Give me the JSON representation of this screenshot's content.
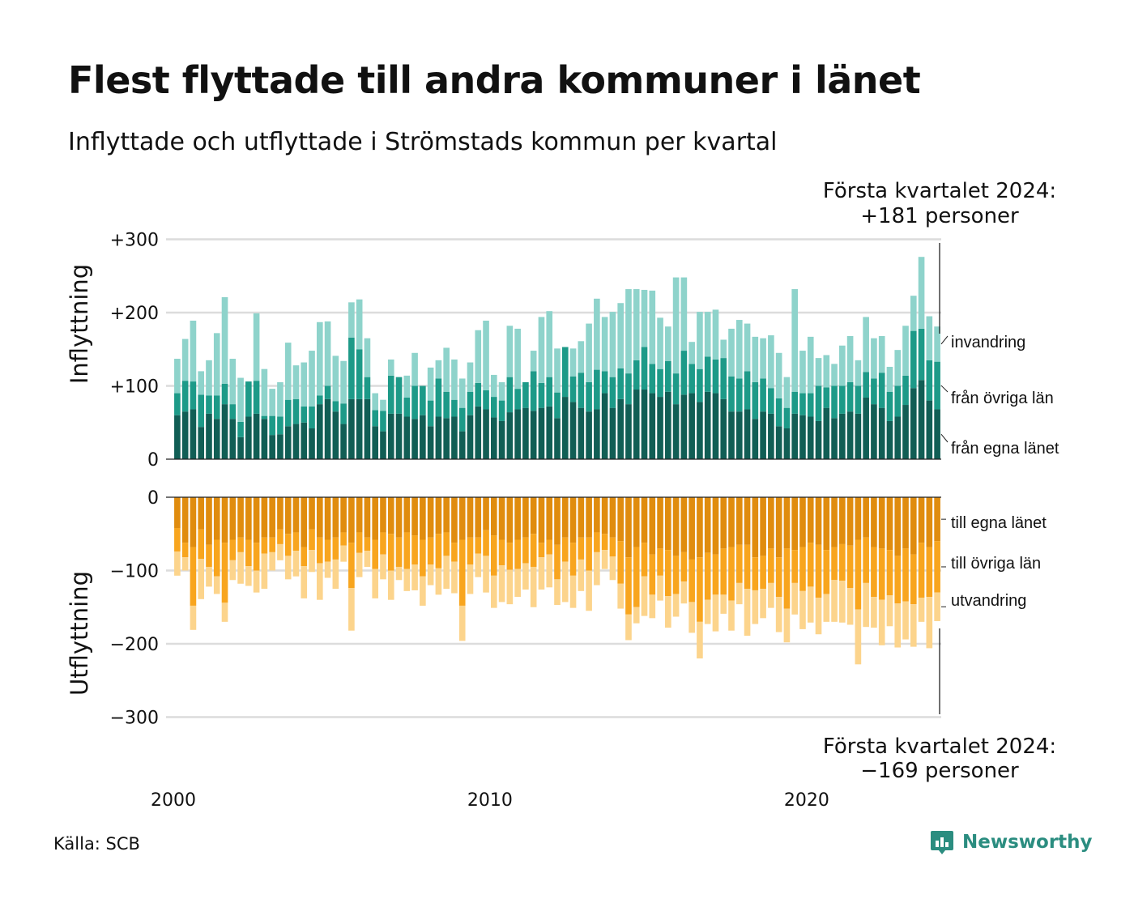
{
  "title": "Flest flyttade till andra kommuner i länet",
  "subtitle": "Inflyttade och utflyttade i Strömstads kommun per kvartal",
  "source": "Källa: SCB",
  "brand": "Newsworthy",
  "colors": {
    "in_own": "#115e55",
    "in_other": "#1d9a88",
    "in_immigration": "#8ed3cb",
    "out_own": "#e08c0e",
    "out_other": "#f8a51e",
    "out_emigration": "#fcd48c",
    "brand": "#2b8d80"
  },
  "chart_data": {
    "type": "bar",
    "stacked": true,
    "x_start": "2000 Q1",
    "x_end": "2024 Q1",
    "xticks": [
      "2000",
      "2010",
      "2020"
    ],
    "panels": [
      {
        "name": "inflyttning",
        "ylabel": "Inflyttning",
        "ylim": [
          0,
          300
        ],
        "yticks": [
          0,
          100,
          200,
          300
        ],
        "ytick_labels": [
          "0",
          "+100",
          "+200",
          "+300"
        ],
        "series": [
          {
            "name": "från egna länet",
            "values": [
              60,
              65,
              68,
              44,
              62,
              55,
              75,
              55,
              30,
              58,
              62,
              55,
              33,
              34,
              45,
              48,
              50,
              42,
              75,
              82,
              65,
              48,
              82,
              82,
              82,
              45,
              38,
              62,
              62,
              58,
              55,
              60,
              45,
              58,
              56,
              58,
              38,
              60,
              72,
              68,
              57,
              52,
              64,
              68,
              70,
              66,
              70,
              72,
              56,
              85,
              78,
              70,
              65,
              68,
              90,
              70,
              82,
              75,
              95,
              95,
              90,
              85,
              92,
              75,
              88,
              90,
              78,
              92,
              90,
              82,
              65,
              65,
              68,
              55,
              65,
              62,
              45,
              42,
              62,
              60,
              58,
              52,
              70,
              56,
              62,
              65,
              62,
              84,
              75,
              70,
              52,
              58,
              74,
              97,
              108,
              80,
              68
            ]
          },
          {
            "name": "från övriga län",
            "values": [
              30,
              42,
              38,
              44,
              25,
              32,
              28,
              20,
              21,
              48,
              45,
              4,
              26,
              24,
              36,
              34,
              22,
              30,
              12,
              18,
              14,
              28,
              84,
              68,
              30,
              22,
              28,
              52,
              50,
              26,
              45,
              40,
              35,
              52,
              36,
              23,
              32,
              32,
              32,
              26,
              28,
              28,
              48,
              28,
              35,
              54,
              34,
              40,
              35,
              68,
              35,
              48,
              40,
              54,
              30,
              42,
              42,
              42,
              40,
              58,
              40,
              38,
              42,
              42,
              60,
              40,
              45,
              48,
              46,
              56,
              48,
              45,
              52,
              50,
              45,
              35,
              38,
              28,
              30,
              30,
              32,
              48,
              28,
              44,
              38,
              40,
              38,
              35,
              35,
              48,
              40,
              42,
              40,
              78,
              70,
              55,
              65
            ]
          },
          {
            "name": "invandring",
            "values": [
              47,
              57,
              83,
              32,
              48,
              85,
              118,
              62,
              60,
              0,
              92,
              64,
              37,
              47,
              78,
              46,
              60,
              76,
              100,
              88,
              62,
              58,
              48,
              68,
              53,
              23,
              15,
              22,
              0,
              30,
              45,
              0,
              45,
              25,
              60,
              55,
              40,
              40,
              72,
              95,
              30,
              25,
              70,
              82,
              0,
              28,
              90,
              90,
              60,
              0,
              38,
              43,
              80,
              97,
              74,
              89,
              89,
              115,
              97,
              78,
              100,
              70,
              47,
              131,
              100,
              30,
              78,
              61,
              68,
              25,
              65,
              80,
              65,
              62,
              55,
              72,
              62,
              42,
              140,
              58,
              77,
              38,
              44,
              30,
              55,
              63,
              35,
              75,
              55,
              50,
              34,
              49,
              68,
              48,
              98,
              60,
              48
            ]
          }
        ]
      },
      {
        "name": "utflyttning",
        "ylabel": "Utflyttning",
        "ylim": [
          -300,
          0
        ],
        "yticks": [
          -300,
          -200,
          -100,
          0
        ],
        "ytick_labels": [
          "−300",
          "−200",
          "−100",
          "0"
        ],
        "series": [
          {
            "name": "till egna länet",
            "values": [
              -42,
              -62,
              -68,
              -44,
              -65,
              -58,
              -62,
              -58,
              -55,
              -58,
              -62,
              -55,
              -55,
              -44,
              -50,
              -48,
              -68,
              -44,
              -55,
              -58,
              -55,
              -48,
              -62,
              -48,
              -55,
              -58,
              -48,
              -50,
              -55,
              -48,
              -52,
              -58,
              -55,
              -50,
              -48,
              -62,
              -58,
              -55,
              -55,
              -45,
              -52,
              -58,
              -62,
              -58,
              -55,
              -50,
              -62,
              -58,
              -65,
              -55,
              -62,
              -55,
              -55,
              -48,
              -50,
              -55,
              -60,
              -82,
              -68,
              -62,
              -78,
              -70,
              -72,
              -80,
              -75,
              -85,
              -82,
              -76,
              -78,
              -70,
              -68,
              -65,
              -65,
              -82,
              -80,
              -70,
              -82,
              -70,
              -72,
              -68,
              -62,
              -65,
              -72,
              -68,
              -64,
              -66,
              -58,
              -55,
              -68,
              -70,
              -72,
              -80,
              -70,
              -78,
              -62,
              -68,
              -60
            ]
          },
          {
            "name": "till övriga län",
            "values": [
              -32,
              -20,
              -80,
              -40,
              -30,
              -50,
              -82,
              -28,
              -20,
              -36,
              -38,
              -22,
              -20,
              -20,
              -30,
              -25,
              -26,
              -28,
              -35,
              -30,
              -30,
              -18,
              -62,
              -28,
              -18,
              -40,
              -30,
              -50,
              -40,
              -50,
              -40,
              -50,
              -37,
              -47,
              -32,
              -26,
              -90,
              -37,
              -22,
              -35,
              -55,
              -35,
              -37,
              -40,
              -35,
              -45,
              -20,
              -20,
              -47,
              -33,
              -45,
              -30,
              -45,
              -27,
              -22,
              -26,
              -58,
              -78,
              -82,
              -46,
              -55,
              -37,
              -63,
              -52,
              -40,
              -58,
              -88,
              -64,
              -55,
              -63,
              -73,
              -52,
              -60,
              -45,
              -45,
              -47,
              -54,
              -82,
              -45,
              -60,
              -60,
              -72,
              -60,
              -45,
              -50,
              -58,
              -95,
              -62,
              -68,
              -70,
              -62,
              -65,
              -72,
              -68,
              -75,
              -68,
              -70
            ]
          },
          {
            "name": "utvandring",
            "values": [
              -33,
              -18,
              -33,
              -55,
              -27,
              -24,
              -26,
              -27,
              -43,
              -27,
              -30,
              -48,
              -25,
              -22,
              -32,
              -35,
              -44,
              -30,
              -50,
              -22,
              -40,
              -22,
              -58,
              -33,
              -22,
              -40,
              -34,
              -40,
              -18,
              -30,
              -35,
              -40,
              -28,
              -36,
              -45,
              -43,
              -48,
              -40,
              -32,
              -50,
              -44,
              -50,
              -47,
              -38,
              -36,
              -55,
              -44,
              -45,
              -35,
              -55,
              -44,
              -43,
              -55,
              -45,
              -26,
              -32,
              -34,
              -35,
              -22,
              -54,
              -32,
              -34,
              -43,
              -31,
              -30,
              -42,
              -50,
              -33,
              -50,
              -26,
              -41,
              -29,
              -64,
              -46,
              -40,
              -34,
              -48,
              -46,
              -43,
              -52,
              -49,
              -50,
              -38,
              -57,
              -57,
              -50,
              -75,
              -60,
              -42,
              -62,
              -42,
              -60,
              -52,
              -58,
              -33,
              -70,
              -39
            ]
          }
        ]
      }
    ],
    "annotations": [
      {
        "panel": "inflyttning",
        "lines": [
          "Första kvartalet 2024:",
          "+181 personer"
        ]
      },
      {
        "panel": "utflyttning",
        "lines": [
          "Första kvartalet 2024:",
          "−169 personer"
        ]
      }
    ]
  }
}
